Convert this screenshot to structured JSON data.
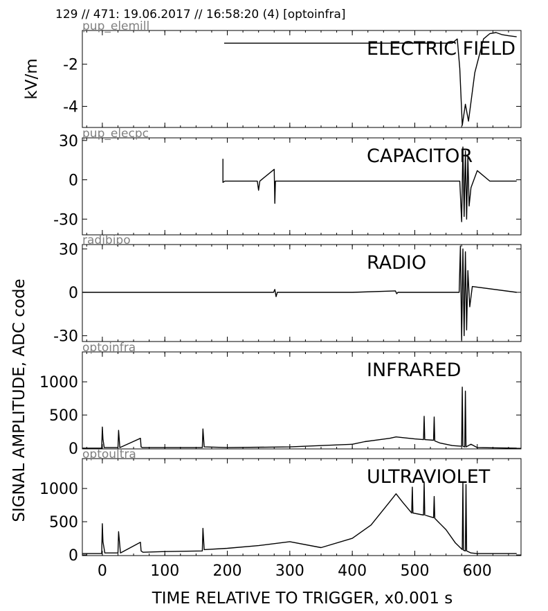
{
  "header": "129 // 471:   19.06.2017 // 16:58:20 (4)  [optoinfra]",
  "xlabel": "TIME RELATIVE TO TRIGGER,   x0.001 s",
  "ylabel": "SIGNAL AMPLITUDE,  ADC code",
  "colors": {
    "trace": "#000000",
    "channel_label": "#808080",
    "background": "#ffffff"
  },
  "chart_data": [
    {
      "type": "line",
      "channel": "pup_elemill",
      "title": "ELECTRIC FIELD",
      "ylabel": "kV/m",
      "xlim": [
        -32,
        670
      ],
      "ylim": [
        -5.0,
        -0.4
      ],
      "xticks": [
        0,
        100,
        200,
        300,
        400,
        500,
        600
      ],
      "yticks": [
        -2,
        -4
      ],
      "ytick_labels": [
        "-2",
        "-4"
      ],
      "series": [
        {
          "x": [
            195,
            560,
            568,
            572,
            576,
            581,
            586,
            596,
            610,
            620,
            630,
            640,
            650,
            663
          ],
          "y": [
            -1.0,
            -1.0,
            -0.8,
            -2.2,
            -4.9,
            -3.9,
            -4.7,
            -2.4,
            -0.8,
            -0.55,
            -0.5,
            -0.6,
            -0.65,
            -0.7
          ]
        }
      ]
    },
    {
      "type": "line",
      "channel": "pup_elecpc",
      "title": "CAPACITOR",
      "xlim": [
        -32,
        670
      ],
      "ylim": [
        -42,
        32
      ],
      "xticks": [
        0,
        100,
        200,
        300,
        400,
        500,
        600
      ],
      "yticks": [
        30,
        0,
        -30
      ],
      "ytick_labels": [
        "30",
        "0",
        "-30"
      ],
      "series": [
        {
          "x": [
            193,
            193,
            196,
            220,
            248,
            250,
            252,
            275,
            276,
            277,
            300,
            350,
            400,
            450,
            500,
            550,
            572,
            575,
            577,
            579,
            581,
            583,
            585,
            587,
            590,
            600,
            620,
            663
          ],
          "y": [
            16,
            -2,
            -1,
            -1,
            -1,
            -8,
            -1,
            8,
            -18,
            -1,
            -1,
            -1,
            -1,
            -1,
            -1,
            -1,
            -1,
            -32,
            25,
            -28,
            22,
            -30,
            18,
            -20,
            -6,
            7,
            -1,
            -1
          ]
        }
      ]
    },
    {
      "type": "line",
      "channel": "radibipo",
      "title": "RADIO",
      "xlim": [
        -32,
        670
      ],
      "ylim": [
        -34,
        33
      ],
      "xticks": [
        0,
        100,
        200,
        300,
        400,
        500,
        600
      ],
      "yticks": [
        30,
        0,
        -30
      ],
      "ytick_labels": [
        "30",
        "0",
        "-30"
      ],
      "series": [
        {
          "x": [
            -32,
            200,
            274,
            276,
            278,
            280,
            400,
            469,
            471,
            473,
            571,
            573,
            575,
            577,
            579,
            581,
            583,
            585,
            588,
            592,
            663
          ],
          "y": [
            0,
            0,
            0,
            2,
            -3,
            0,
            0,
            1,
            -1,
            0,
            0,
            32,
            -33,
            30,
            -30,
            28,
            -26,
            15,
            -10,
            4,
            0
          ]
        }
      ]
    },
    {
      "type": "line",
      "channel": "optoinfra",
      "title": "INFRARED",
      "xlim": [
        -32,
        670
      ],
      "ylim": [
        -10,
        1450
      ],
      "xticks": [
        0,
        100,
        200,
        300,
        400,
        500,
        600
      ],
      "yticks": [
        1000,
        500,
        0
      ],
      "ytick_labels": [
        "1000",
        "500",
        "0"
      ],
      "series": [
        {
          "x": [
            -32,
            -1,
            0,
            1,
            3,
            25,
            26,
            28,
            61,
            62,
            64,
            160,
            161,
            163,
            200,
            300,
            400,
            420,
            460,
            470,
            500,
            514,
            515,
            516,
            530,
            531,
            532,
            540,
            560,
            575,
            576,
            577,
            580,
            581,
            582,
            590,
            600,
            663
          ],
          "y": [
            0,
            0,
            320,
            140,
            10,
            10,
            270,
            10,
            150,
            20,
            10,
            10,
            290,
            20,
            10,
            20,
            60,
            100,
            150,
            170,
            140,
            130,
            480,
            130,
            120,
            470,
            110,
            80,
            40,
            30,
            920,
            30,
            20,
            860,
            20,
            60,
            10,
            0
          ]
        }
      ]
    },
    {
      "type": "line",
      "channel": "optoultra",
      "title": "ULTRAVIOLET",
      "xlim": [
        -32,
        670
      ],
      "ylim": [
        -10,
        1450
      ],
      "xticks": [
        0,
        100,
        200,
        300,
        400,
        500,
        600
      ],
      "yticks": [
        1000,
        500,
        0
      ],
      "ytick_labels": [
        "1000",
        "500",
        "0"
      ],
      "series": [
        {
          "x": [
            -32,
            -1,
            0,
            1,
            4,
            25,
            26,
            29,
            61,
            62,
            65,
            100,
            160,
            161,
            163,
            200,
            250,
            300,
            350,
            400,
            430,
            460,
            470,
            480,
            495,
            496,
            497,
            514,
            515,
            516,
            530,
            531,
            532,
            550,
            565,
            576,
            577,
            578,
            581,
            582,
            583,
            590,
            600,
            663
          ],
          "y": [
            20,
            20,
            470,
            200,
            30,
            30,
            350,
            30,
            190,
            60,
            40,
            50,
            60,
            400,
            80,
            100,
            140,
            200,
            110,
            250,
            450,
            800,
            920,
            800,
            630,
            1020,
            630,
            600,
            1100,
            600,
            560,
            880,
            550,
            380,
            180,
            80,
            1100,
            70,
            60,
            1060,
            60,
            30,
            20,
            20
          ]
        }
      ]
    }
  ]
}
